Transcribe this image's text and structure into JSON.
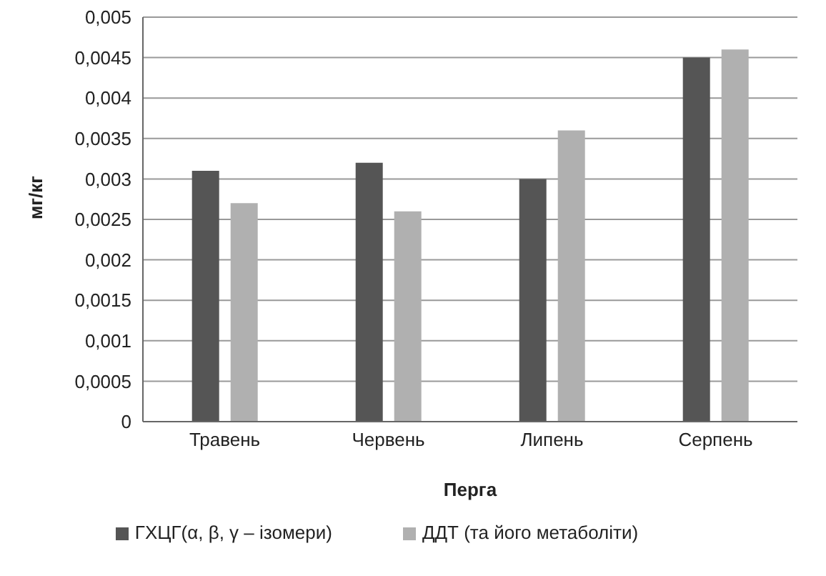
{
  "chart_data": {
    "type": "bar",
    "xlabel": "Перга",
    "ylabel": "мг/кг",
    "categories": [
      "Травень",
      "Червень",
      "Липень",
      "Серпень"
    ],
    "series": [
      {
        "name": "ГХЦГ(α, β, γ – ізомери)",
        "color": "#555555",
        "values": [
          0.0031,
          0.0032,
          0.003,
          0.0045
        ]
      },
      {
        "name": "ДДТ (та його метаболіти)",
        "color": "#b0b0b0",
        "values": [
          0.0027,
          0.0026,
          0.0036,
          0.0046
        ]
      }
    ],
    "ylim": [
      0,
      0.005
    ],
    "yticks": [
      {
        "value": 0,
        "label": "0"
      },
      {
        "value": 0.0005,
        "label": "0,0005"
      },
      {
        "value": 0.001,
        "label": "0,001"
      },
      {
        "value": 0.0015,
        "label": "0,0015"
      },
      {
        "value": 0.002,
        "label": "0,002"
      },
      {
        "value": 0.0025,
        "label": "0,0025"
      },
      {
        "value": 0.003,
        "label": "0,003"
      },
      {
        "value": 0.0035,
        "label": "0,0035"
      },
      {
        "value": 0.004,
        "label": "0,004"
      },
      {
        "value": 0.0045,
        "label": "0,0045"
      },
      {
        "value": 0.005,
        "label": "0,005"
      }
    ],
    "grid": "y",
    "legend": "bottom"
  }
}
